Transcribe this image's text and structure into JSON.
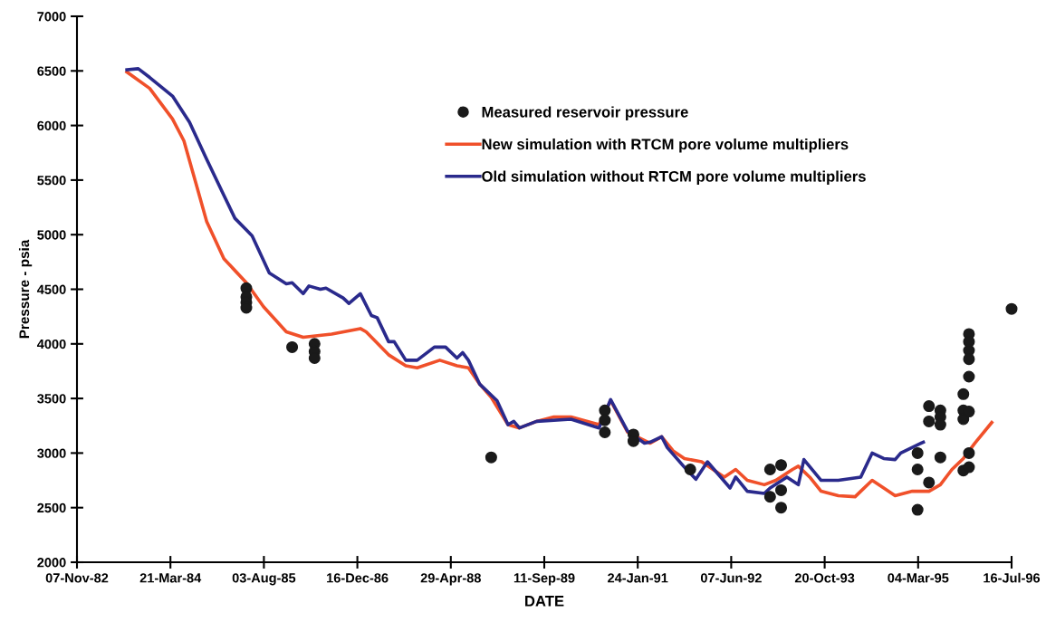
{
  "chart_data": {
    "type": "line",
    "xlabel": "DATE",
    "ylabel": "Pressure - psia",
    "xlim": [
      "1982-11-07",
      "1996-07-16"
    ],
    "xticks": [
      {
        "value": "1982-11-07",
        "label": "07-Nov-82"
      },
      {
        "value": "1984-03-21",
        "label": "21-Mar-84"
      },
      {
        "value": "1985-08-03",
        "label": "03-Aug-85"
      },
      {
        "value": "1986-12-16",
        "label": "16-Dec-86"
      },
      {
        "value": "1988-04-29",
        "label": "29-Apr-88"
      },
      {
        "value": "1989-09-11",
        "label": "11-Sep-89"
      },
      {
        "value": "1991-01-24",
        "label": "24-Jan-91"
      },
      {
        "value": "1992-06-07",
        "label": "07-Jun-92"
      },
      {
        "value": "1993-10-20",
        "label": "20-Oct-93"
      },
      {
        "value": "1995-03-04",
        "label": "04-Mar-95"
      },
      {
        "value": "1996-07-16",
        "label": "16-Jul-96"
      }
    ],
    "ylim": [
      2000,
      7000
    ],
    "yticks": [
      2000,
      2500,
      3000,
      3500,
      4000,
      4500,
      5000,
      5500,
      6000,
      6500,
      7000
    ],
    "grid": false,
    "legend": "top",
    "series": [
      {
        "name": "Measured reservoir pressure",
        "type": "scatter",
        "marker": "circle",
        "color": "#1a1a1a",
        "x": [
          "1985-05",
          "1985-05",
          "1985-05",
          "1985-05",
          "1986-01",
          "1986-05",
          "1986-05",
          "1986-05",
          "1988-12",
          "1990-08",
          "1990-08",
          "1990-08",
          "1991-01",
          "1991-01",
          "1991-11",
          "1993-01",
          "1993-01",
          "1993-03",
          "1993-03",
          "1993-03",
          "1995-03",
          "1995-03",
          "1995-03",
          "1995-05",
          "1995-05",
          "1995-05",
          "1995-07",
          "1995-07",
          "1995-07",
          "1995-07",
          "1995-11",
          "1995-11",
          "1995-11",
          "1995-11",
          "1995-12",
          "1995-12",
          "1995-12",
          "1995-12",
          "1995-12",
          "1995-12",
          "1995-12",
          "1995-12",
          "1996-07-16"
        ],
        "values": [
          4510,
          4430,
          4380,
          4330,
          3970,
          4000,
          3930,
          3870,
          2960,
          3390,
          3300,
          3190,
          3170,
          3110,
          2850,
          2850,
          2600,
          2890,
          2660,
          2500,
          3000,
          2850,
          2480,
          3430,
          3290,
          2730,
          3390,
          3330,
          3260,
          2960,
          3540,
          3390,
          3310,
          2840,
          4090,
          4020,
          3940,
          3860,
          3700,
          3380,
          3000,
          2870,
          4320
        ]
      },
      {
        "name": "New simulation with RTCM pore volume multipliers",
        "color": "#f0502a",
        "x": [
          "1983-08",
          "1983-12",
          "1984-04",
          "1984-06",
          "1984-08",
          "1984-10",
          "1985-01",
          "1985-05",
          "1985-08",
          "1985-12",
          "1986-03",
          "1986-08",
          "1987-01",
          "1987-02",
          "1987-06",
          "1987-09",
          "1987-11",
          "1988-03",
          "1988-06",
          "1988-08",
          "1988-10",
          "1988-12",
          "1989-03",
          "1989-05",
          "1989-08",
          "1989-11",
          "1990-02",
          "1990-07",
          "1990-09",
          "1990-12",
          "1991-04",
          "1991-06",
          "1991-08",
          "1991-10",
          "1992-01",
          "1992-05",
          "1992-07",
          "1992-09",
          "1992-12",
          "1993-02",
          "1993-05",
          "1993-06",
          "1993-08",
          "1993-10",
          "1994-01",
          "1994-04",
          "1994-05",
          "1994-07",
          "1994-09",
          "1994-11",
          "1995-02",
          "1995-05",
          "1995-07",
          "1995-09",
          "1995-11",
          "1996-01",
          "1996-04"
        ],
        "values": [
          6490,
          6340,
          6060,
          5860,
          5490,
          5120,
          4780,
          4560,
          4340,
          4110,
          4060,
          4090,
          4140,
          4110,
          3900,
          3800,
          3780,
          3850,
          3800,
          3780,
          3630,
          3510,
          3260,
          3230,
          3290,
          3330,
          3330,
          3260,
          3480,
          3190,
          3090,
          3150,
          3020,
          2950,
          2920,
          2780,
          2850,
          2750,
          2710,
          2750,
          2850,
          2880,
          2780,
          2650,
          2610,
          2600,
          2650,
          2750,
          2680,
          2610,
          2650,
          2650,
          2710,
          2850,
          2950,
          3090,
          3280
        ]
      },
      {
        "name": "Old simulation without RTCM pore volume multipliers",
        "color": "#2a2a8c",
        "x": [
          "1983-08",
          "1983-10",
          "1983-12",
          "1984-04",
          "1984-07",
          "1984-10",
          "1985-01",
          "1985-03",
          "1985-06",
          "1985-09",
          "1985-12",
          "1986-01",
          "1986-03",
          "1986-04",
          "1986-06",
          "1986-07",
          "1986-10",
          "1986-11",
          "1987-01",
          "1987-03",
          "1987-04",
          "1987-06",
          "1987-07",
          "1987-09",
          "1987-11",
          "1988-02",
          "1988-04",
          "1988-06",
          "1988-07",
          "1988-08",
          "1988-10",
          "1989-01",
          "1989-03",
          "1989-04",
          "1989-05",
          "1989-08",
          "1990-02",
          "1990-07",
          "1990-09",
          "1990-12",
          "1991-03",
          "1991-04",
          "1991-06",
          "1991-07",
          "1991-10",
          "1991-12",
          "1992-02",
          "1992-06",
          "1992-07",
          "1992-09",
          "1992-12",
          "1993-01",
          "1993-04",
          "1993-06",
          "1993-07",
          "1993-10",
          "1994-01",
          "1994-05",
          "1994-07",
          "1994-09",
          "1994-11",
          "1994-12",
          "1995-04"
        ],
        "values": [
          6510,
          6520,
          6440,
          6270,
          6030,
          5690,
          5360,
          5150,
          4990,
          4650,
          4550,
          4560,
          4460,
          4530,
          4500,
          4510,
          4420,
          4370,
          4460,
          4260,
          4240,
          4020,
          4020,
          3850,
          3850,
          3970,
          3970,
          3870,
          3920,
          3850,
          3630,
          3480,
          3260,
          3290,
          3230,
          3290,
          3310,
          3230,
          3490,
          3200,
          3090,
          3100,
          3150,
          3050,
          2870,
          2760,
          2920,
          2680,
          2780,
          2650,
          2630,
          2680,
          2780,
          2710,
          2940,
          2750,
          2750,
          2780,
          3000,
          2950,
          2940,
          3000,
          3100
        ]
      }
    ]
  }
}
